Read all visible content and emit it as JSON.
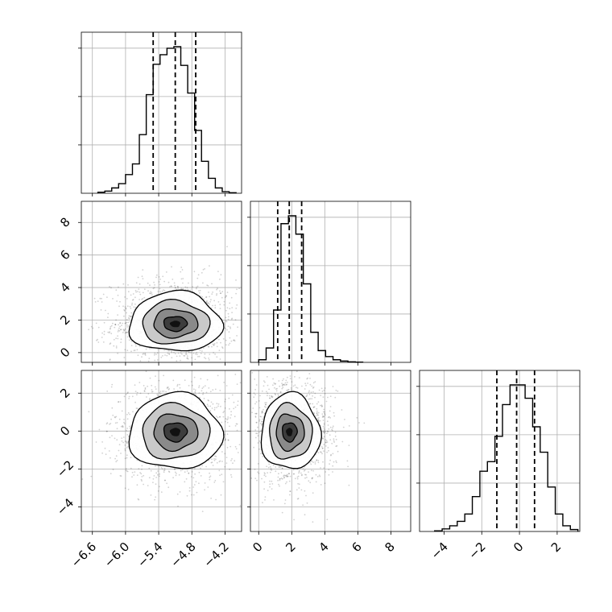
{
  "chart_data": [
    {
      "type": "histogram",
      "panel": "diag-0",
      "xlim": [
        -6.8,
        -3.9
      ],
      "bin_edges": [
        -6.5,
        -6.375,
        -6.25,
        -6.125,
        -6.0,
        -5.875,
        -5.75,
        -5.625,
        -5.5,
        -5.375,
        -5.25,
        -5.125,
        -5.0,
        -4.875,
        -4.75,
        -4.625,
        -4.5,
        -4.375,
        -4.25,
        -4.125,
        -4.0
      ],
      "counts": [
        2,
        4,
        10,
        18,
        35,
        55,
        110,
        185,
        242,
        260,
        272,
        275,
        240,
        188,
        118,
        60,
        28,
        10,
        3,
        1
      ],
      "quantiles": [
        -5.5,
        -5.1,
        -4.73
      ],
      "grid": true
    },
    {
      "type": "histogram",
      "panel": "diag-1",
      "xlim": [
        -0.5,
        9.2
      ],
      "bin_edges": [
        0.0,
        0.45,
        0.9,
        1.35,
        1.8,
        2.25,
        2.7,
        3.15,
        3.6,
        4.05,
        4.5,
        4.95,
        5.4,
        5.85,
        6.3
      ],
      "counts": [
        10,
        55,
        200,
        530,
        560,
        490,
        300,
        115,
        45,
        22,
        10,
        5,
        2,
        1
      ],
      "quantiles": [
        1.15,
        1.85,
        2.6
      ],
      "grid": true
    },
    {
      "type": "histogram",
      "panel": "diag-2",
      "xlim": [
        -5.3,
        3.2
      ],
      "bin_edges": [
        -4.5,
        -4.1,
        -3.7,
        -3.3,
        -2.9,
        -2.5,
        -2.1,
        -1.7,
        -1.3,
        -0.9,
        -0.5,
        -0.1,
        0.3,
        0.7,
        1.1,
        1.5,
        1.9,
        2.3,
        2.7,
        3.1
      ],
      "counts": [
        2,
        8,
        18,
        32,
        55,
        110,
        190,
        220,
        300,
        400,
        462,
        462,
        420,
        330,
        250,
        140,
        55,
        18,
        6
      ],
      "quantiles": [
        -1.2,
        -0.15,
        0.8
      ],
      "grid": true
    },
    {
      "type": "scatter-density",
      "panel": "pair-1-0",
      "xlim": [
        -6.8,
        -3.9
      ],
      "ylim": [
        -0.6,
        9.3
      ],
      "center": [
        -5.1,
        1.75
      ],
      "spread": [
        0.42,
        0.85
      ],
      "skew_y": 0.6,
      "grid": true
    },
    {
      "type": "scatter-density",
      "panel": "pair-2-0",
      "xlim": [
        -6.8,
        -3.9
      ],
      "ylim": [
        -5.3,
        3.2
      ],
      "center": [
        -5.1,
        -0.05
      ],
      "spread": [
        0.42,
        1.0
      ],
      "skew_y": 0,
      "grid": true
    },
    {
      "type": "scatter-density",
      "panel": "pair-2-1",
      "xlim": [
        -0.5,
        9.2
      ],
      "ylim": [
        -5.3,
        3.2
      ],
      "center": [
        1.85,
        -0.05
      ],
      "spread": [
        0.85,
        1.0
      ],
      "skew_x": 0.6,
      "grid": true
    }
  ],
  "axes": {
    "col0_x_ticks": [
      {
        "v": -6.6,
        "label": "−6.6"
      },
      {
        "v": -6.0,
        "label": "−6.0"
      },
      {
        "v": -5.4,
        "label": "−5.4"
      },
      {
        "v": -4.8,
        "label": "−4.8"
      },
      {
        "v": -4.2,
        "label": "−4.2"
      }
    ],
    "col1_x_ticks": [
      {
        "v": 0,
        "label": "0"
      },
      {
        "v": 2,
        "label": "2"
      },
      {
        "v": 4,
        "label": "4"
      },
      {
        "v": 6,
        "label": "6"
      },
      {
        "v": 8,
        "label": "8"
      }
    ],
    "col2_x_ticks": [
      {
        "v": -4,
        "label": "−4"
      },
      {
        "v": -2,
        "label": "−2"
      },
      {
        "v": 0,
        "label": "0"
      },
      {
        "v": 2,
        "label": "2"
      }
    ],
    "row1_y_ticks": [
      {
        "v": 0,
        "label": "0"
      },
      {
        "v": 2,
        "label": "2"
      },
      {
        "v": 4,
        "label": "4"
      },
      {
        "v": 6,
        "label": "6"
      },
      {
        "v": 8,
        "label": "8"
      }
    ],
    "row2_y_ticks": [
      {
        "v": -4,
        "label": "−4"
      },
      {
        "v": -2,
        "label": "−2"
      },
      {
        "v": 0,
        "label": "0"
      },
      {
        "v": 2,
        "label": "2"
      }
    ]
  },
  "style": {
    "line": "#000000",
    "grid": "#b0b0b0",
    "scatter": "#000000"
  }
}
